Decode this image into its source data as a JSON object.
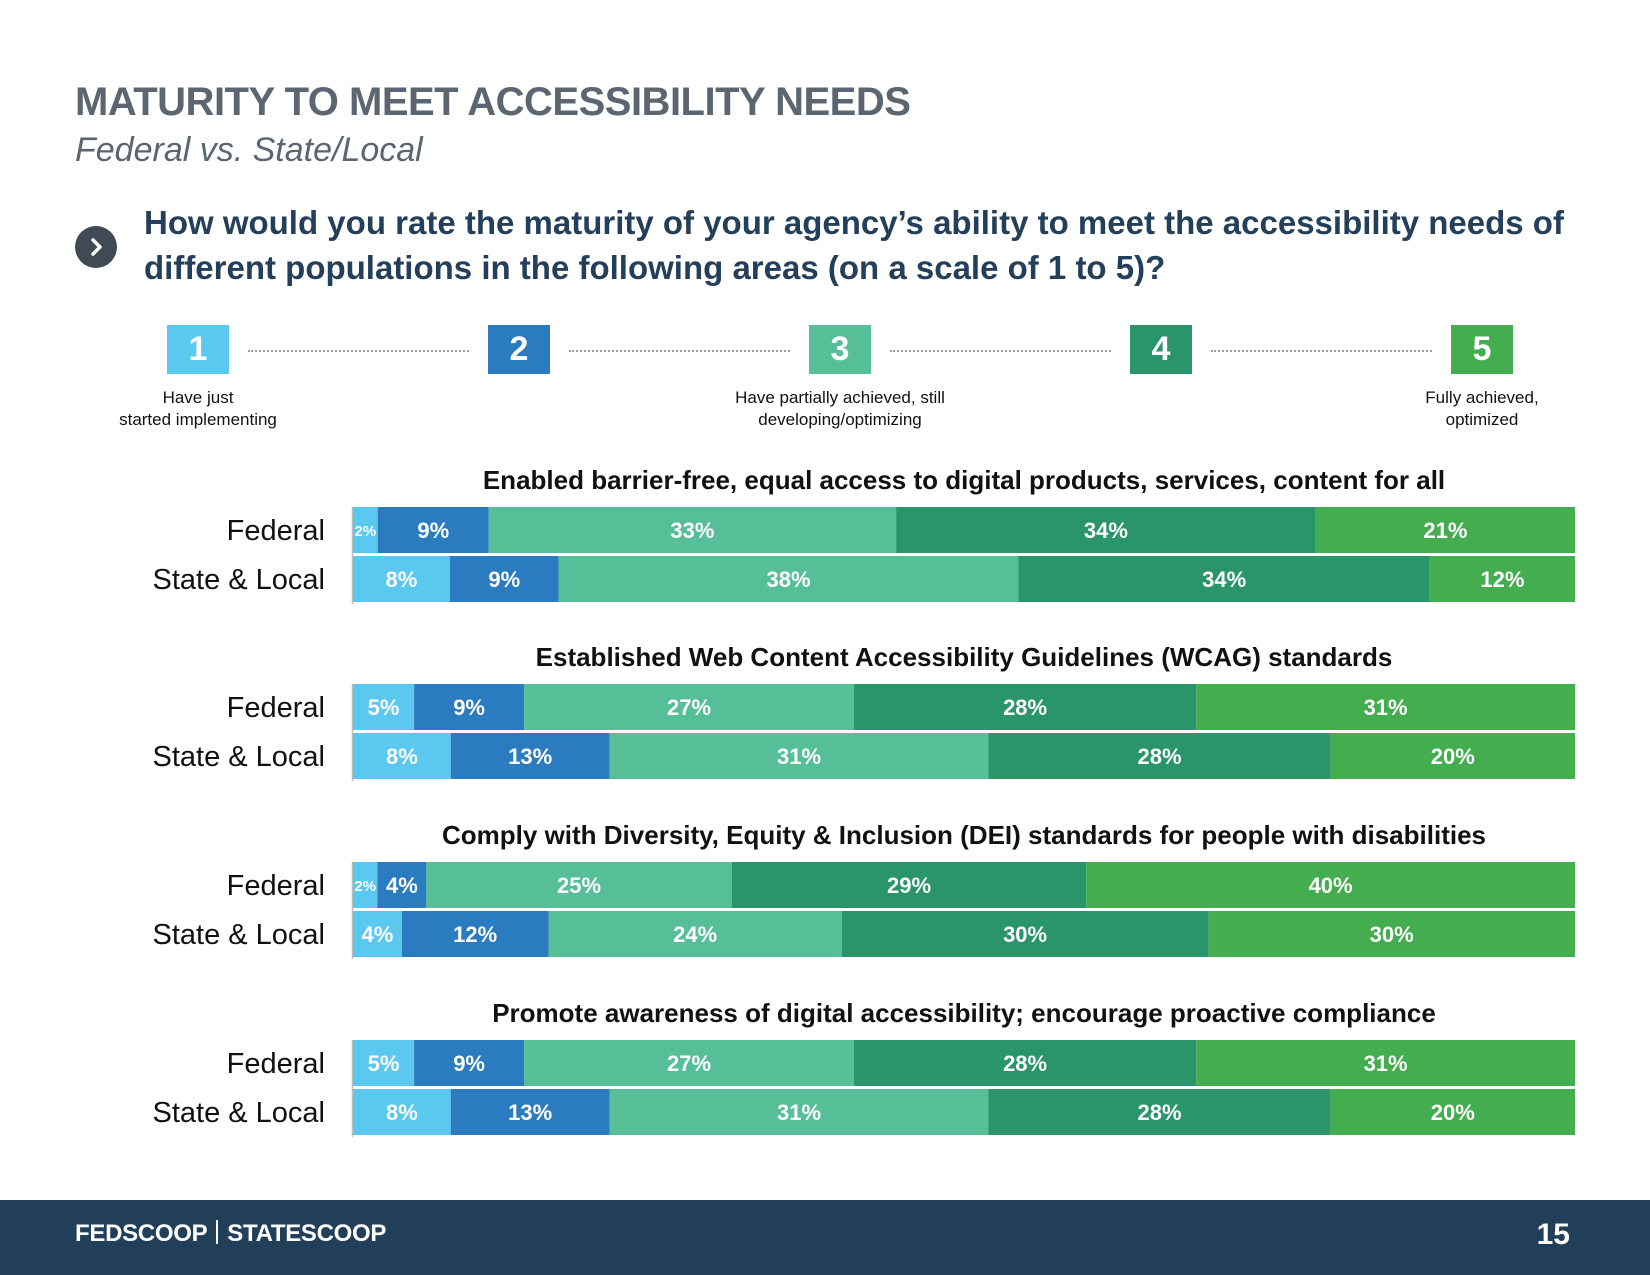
{
  "header": {
    "title": "MATURITY TO MEET ACCESSIBILITY NEEDS",
    "subtitle": "Federal vs. State/Local"
  },
  "question": {
    "icon": "chevron-right-icon",
    "text": "How would you rate the maturity of your agency’s ability to meet the accessibility needs of different populations in the following areas (on a scale of 1 to 5)?"
  },
  "scale": {
    "levels": [
      {
        "number": "1",
        "label1": "Have just",
        "label2": "started implementing",
        "color": "#5bc8ef"
      },
      {
        "number": "2",
        "label1": "",
        "label2": "",
        "color": "#2b7bc0"
      },
      {
        "number": "3",
        "label1": "Have partially achieved, still",
        "label2": "developing/optimizing",
        "color": "#56bf98"
      },
      {
        "number": "4",
        "label1": "",
        "label2": "",
        "color": "#2a946b"
      },
      {
        "number": "5",
        "label1": "Fully achieved,",
        "label2": "optimized",
        "color": "#44ad4f"
      }
    ]
  },
  "chart_data": {
    "type": "bar",
    "orientation": "horizontal",
    "stacked": true,
    "normalized": true,
    "unit": "%",
    "colors": [
      "#5bc8ef",
      "#2b7bc0",
      "#56bf98",
      "#2a946b",
      "#44ad4f"
    ],
    "panels": [
      {
        "title": "Enabled barrier-free, equal access to digital products, services, content for all",
        "rows": [
          {
            "label": "Federal",
            "values": [
              2,
              9,
              33,
              34,
              21
            ]
          },
          {
            "label": "State & Local",
            "values": [
              8,
              9,
              38,
              34,
              12
            ]
          }
        ]
      },
      {
        "title": "Established Web Content Accessibility Guidelines (WCAG) standards",
        "rows": [
          {
            "label": "Federal",
            "values": [
              5,
              9,
              27,
              28,
              31
            ]
          },
          {
            "label": "State & Local",
            "values": [
              8,
              13,
              31,
              28,
              20
            ]
          }
        ]
      },
      {
        "title": "Comply with Diversity, Equity & Inclusion (DEI) standards for people with disabilities",
        "rows": [
          {
            "label": "Federal",
            "values": [
              2,
              4,
              25,
              29,
              40
            ]
          },
          {
            "label": "State & Local",
            "values": [
              4,
              12,
              24,
              30,
              30
            ]
          }
        ]
      },
      {
        "title": "Promote awareness of digital accessibility; encourage proactive compliance",
        "rows": [
          {
            "label": "Federal",
            "values": [
              5,
              9,
              27,
              28,
              31
            ]
          },
          {
            "label": "State & Local",
            "values": [
              8,
              13,
              31,
              28,
              20
            ]
          }
        ]
      }
    ]
  },
  "footer": {
    "brand_left": "FEDSCOOP",
    "brand_right": "STATESCOOP",
    "page_number": "15"
  }
}
